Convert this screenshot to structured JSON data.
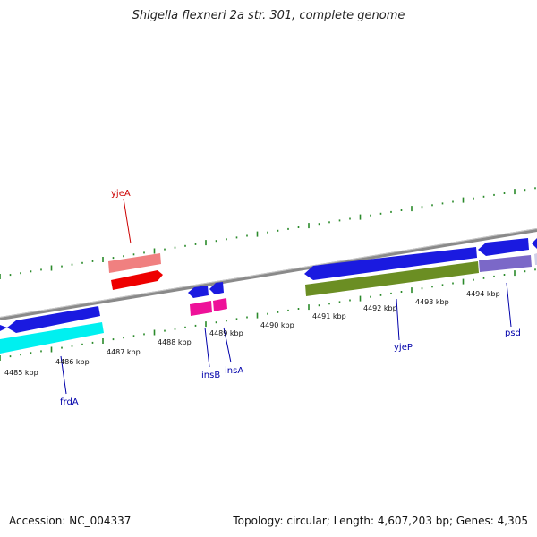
{
  "title": "Shigella flexneri 2a str. 301, complete genome",
  "footer": {
    "accession": "Accession: NC_004337",
    "summary": "Topology: circular; Length: 4,607,203 bp; Genes: 4,305"
  },
  "scale": {
    "ticks": [
      "4485 kbp",
      "4486 kbp",
      "4487 kbp",
      "4488 kbp",
      "4489 kbp",
      "4490 kbp",
      "4491 kbp",
      "4492 kbp",
      "4493 kbp",
      "4494 kbp"
    ]
  },
  "genes": [
    {
      "name": "yjeA",
      "color": "#cc0000"
    },
    {
      "name": "frdA",
      "color": "#0000aa"
    },
    {
      "name": "insB",
      "color": "#0000aa"
    },
    {
      "name": "insA",
      "color": "#0000aa"
    },
    {
      "name": "yjeP",
      "color": "#0000aa"
    },
    {
      "name": "psd",
      "color": "#0000aa"
    }
  ],
  "colors": {
    "backbone": "#8a8a8a",
    "tick_dotted": "#2a8a2a",
    "cds_blue": "#1a1ae0",
    "cyan": "#00f0f0",
    "olive": "#6b8e23",
    "pink": "#f08080",
    "red": "#ee0000",
    "magenta": "#ee1199",
    "lavender": "#7b68c8"
  }
}
